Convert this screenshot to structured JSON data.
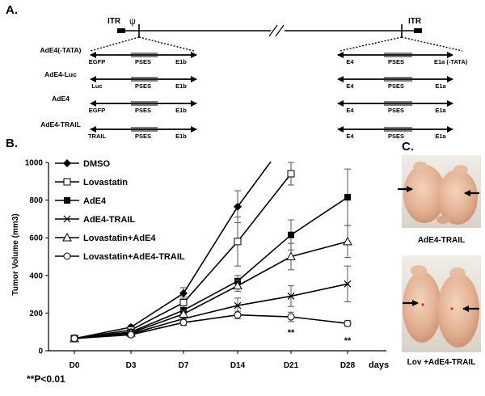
{
  "panels": {
    "a": "A.",
    "b": "B.",
    "c": "C."
  },
  "schematic": {
    "itr_left": "ITR",
    "psi": "ψ",
    "itr_right": "ITR",
    "constructs": [
      {
        "name": "AdE4(-TATA)",
        "left": [
          "EGFP",
          "PSES",
          "E1b"
        ],
        "right": [
          "E4",
          "PSES",
          "E1a (-TATA)"
        ]
      },
      {
        "name": "AdE4-Luc",
        "left": [
          "Luc",
          "PSES",
          "E1b"
        ],
        "right": [
          "E4",
          "PSES",
          "E1a"
        ]
      },
      {
        "name": "AdE4",
        "left": [
          "EGFP",
          "PSES",
          "E1b"
        ],
        "right": [
          "E4",
          "PSES",
          "E1a"
        ]
      },
      {
        "name": "AdE4-TRAIL",
        "left": [
          "TRAIL",
          "PSES",
          "E1b"
        ],
        "right": [
          "E4",
          "PSES",
          "E1a"
        ]
      }
    ]
  },
  "chart_data": {
    "type": "line",
    "ylabel": "Tumor Volume (mm3)",
    "xunit": "days",
    "categories": [
      "D0",
      "D3",
      "D7",
      "D14",
      "D21",
      "D28"
    ],
    "ylim": [
      0,
      1000
    ],
    "yticks": [
      0,
      200,
      400,
      600,
      800,
      1000
    ],
    "series": [
      {
        "name": "DMSO",
        "marker": "diamond",
        "values": [
          65,
          125,
          305,
          765,
          1150,
          null
        ],
        "err": [
          5,
          12,
          30,
          85,
          0,
          0
        ]
      },
      {
        "name": "Lovastatin",
        "marker": "open-square",
        "values": [
          65,
          110,
          255,
          580,
          940,
          null
        ],
        "err": [
          5,
          10,
          30,
          130,
          60,
          0
        ]
      },
      {
        "name": "AdE4",
        "marker": "square",
        "values": [
          65,
          100,
          215,
          370,
          615,
          815
        ],
        "err": [
          5,
          10,
          25,
          30,
          80,
          150
        ]
      },
      {
        "name": "AdE4-TRAIL",
        "marker": "cross",
        "values": [
          65,
          90,
          170,
          240,
          290,
          355
        ],
        "err": [
          5,
          10,
          20,
          40,
          55,
          95
        ]
      },
      {
        "name": "Lovastatin+AdE4",
        "marker": "open-triangle",
        "values": [
          65,
          95,
          195,
          345,
          500,
          580
        ],
        "err": [
          5,
          10,
          20,
          30,
          70,
          85
        ]
      },
      {
        "name": "Lovastatin+AdE4-TRAIL",
        "marker": "open-circle",
        "values": [
          65,
          85,
          150,
          190,
          180,
          145
        ],
        "err": [
          5,
          10,
          15,
          20,
          25,
          15
        ]
      }
    ],
    "significance": [
      {
        "x": "D21",
        "label": "**"
      },
      {
        "x": "D28",
        "label": "**"
      }
    ],
    "footnote": "**P<0.01"
  },
  "photos": {
    "top_caption": "AdE4-TRAIL",
    "bottom_caption": "Lov +AdE4-TRAIL"
  }
}
